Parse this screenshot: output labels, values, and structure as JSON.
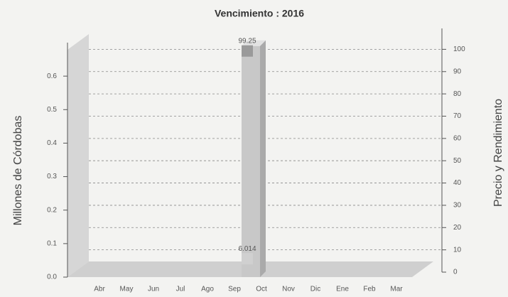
{
  "chart_data": {
    "type": "bar",
    "title": "Vencimiento : 2016",
    "ylabel": "Millones de Córdobas",
    "y2label": "Precio y Rendimiento",
    "categories": [
      "Abr",
      "May",
      "Jun",
      "Jul",
      "Ago",
      "Sep",
      "Oct",
      "Nov",
      "Dic",
      "Ene",
      "Feb",
      "Mar"
    ],
    "series": [
      {
        "color": "#c8c8c8",
        "values": [
          null,
          null,
          null,
          null,
          null,
          0.69,
          null,
          null,
          null,
          null,
          null,
          null
        ]
      },
      {
        "color": "#9a9a9a",
        "axis": "y2",
        "values": [
          null,
          null,
          null,
          null,
          null,
          99.25,
          null,
          null,
          null,
          null,
          null,
          null
        ]
      },
      {
        "color": "#d0d0d0",
        "axis": "y2",
        "values": [
          null,
          null,
          null,
          null,
          null,
          6.014,
          null,
          null,
          null,
          null,
          null,
          null
        ]
      }
    ],
    "ylim": [
      0,
      0.7
    ],
    "yticks": [
      {
        "value": 0,
        "label": "0.0"
      },
      0.1,
      0.2,
      0.3,
      0.4,
      0.5,
      0.6
    ],
    "y2lim": [
      0,
      103
    ],
    "y2ticks": [
      0,
      10,
      20,
      30,
      40,
      50,
      60,
      70,
      80,
      90,
      100
    ],
    "grid": true
  }
}
